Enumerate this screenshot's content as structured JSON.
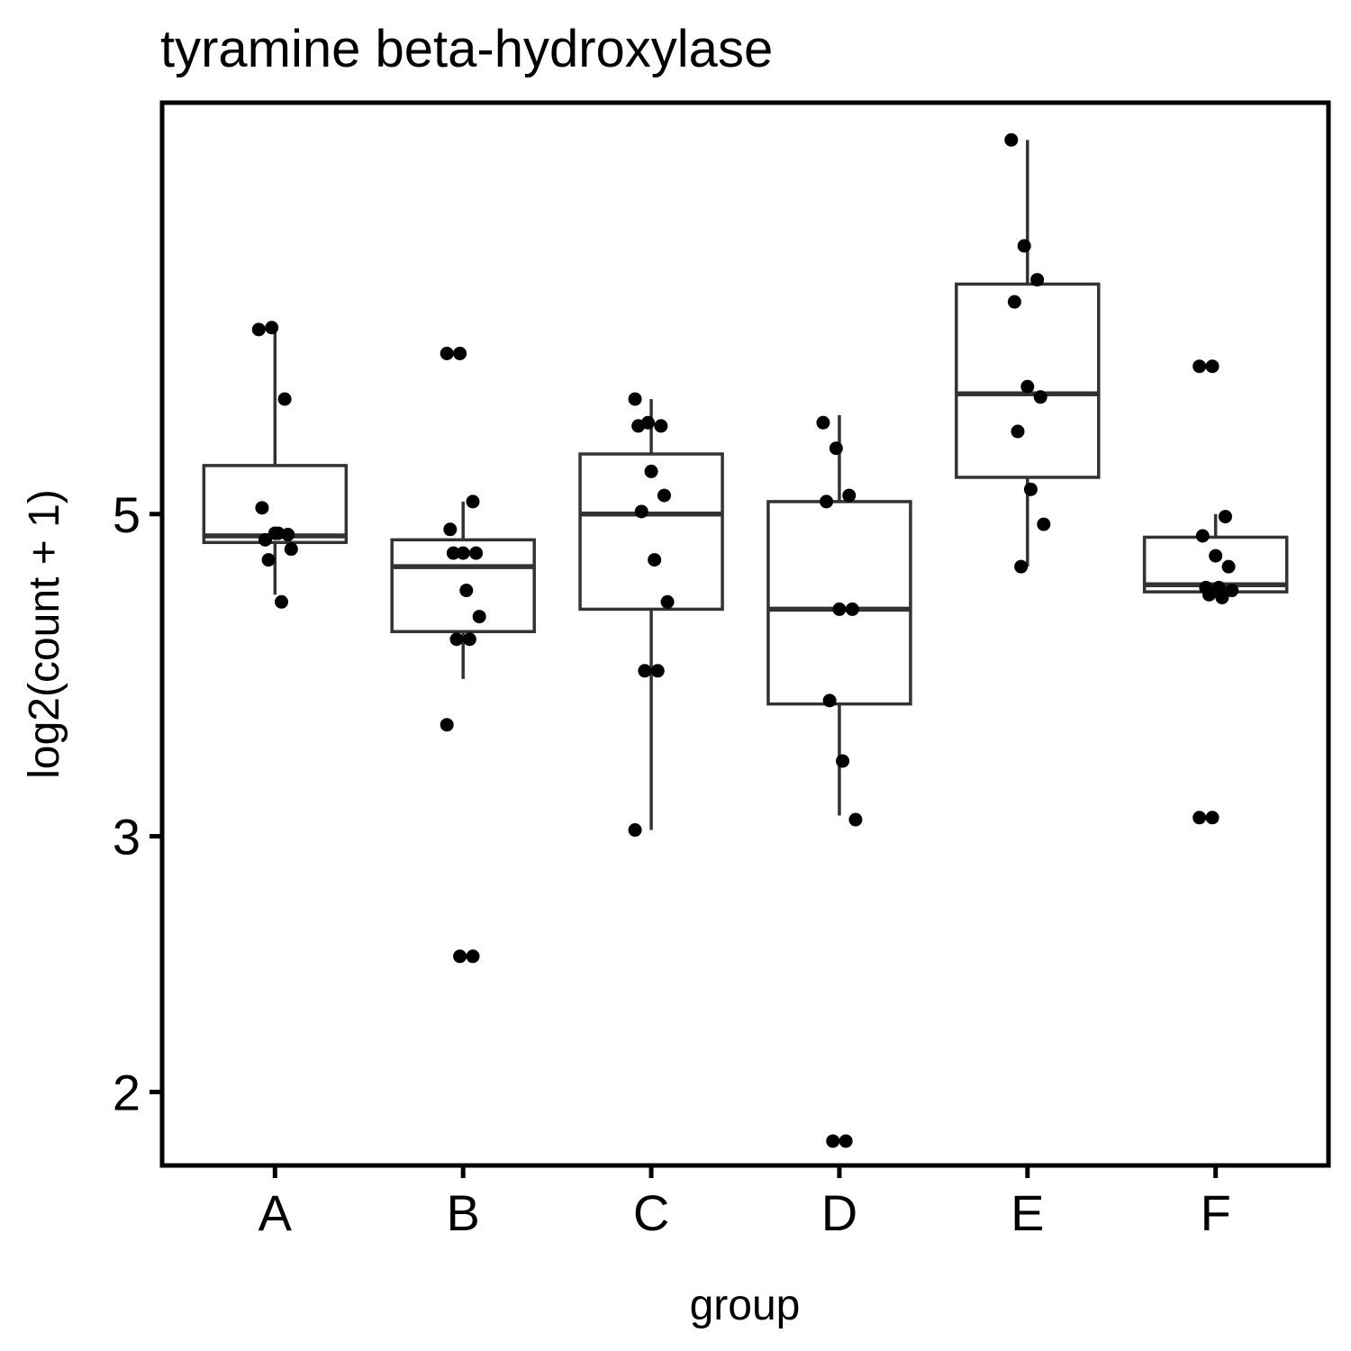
{
  "chart_data": {
    "type": "boxplot",
    "title": "tyramine beta-hydroxylase",
    "xlabel": "group",
    "ylabel": "log2(count + 1)",
    "scale_y": "log",
    "ylim": [
      1.78,
      9.6
    ],
    "yticks": [
      2,
      3,
      5
    ],
    "grid": false,
    "legend": "none",
    "categories": [
      "A",
      "B",
      "C",
      "D",
      "E",
      "F"
    ],
    "boxes": [
      {
        "group": "A",
        "min": 4.4,
        "q1": 4.78,
        "median": 4.83,
        "q3": 5.4,
        "max": 6.7
      },
      {
        "group": "B",
        "min": 3.85,
        "q1": 4.15,
        "median": 4.6,
        "q3": 4.8,
        "max": 5.1
      },
      {
        "group": "C",
        "min": 3.03,
        "q1": 4.3,
        "median": 5.0,
        "q3": 5.5,
        "max": 6.0
      },
      {
        "group": "D",
        "min": 3.1,
        "q1": 3.7,
        "median": 4.3,
        "q3": 5.1,
        "max": 5.85
      },
      {
        "group": "E",
        "min": 4.6,
        "q1": 5.3,
        "median": 6.05,
        "q3": 7.2,
        "max": 9.05
      },
      {
        "group": "F",
        "min": 4.4,
        "q1": 4.42,
        "median": 4.47,
        "q3": 4.82,
        "max": 5.0
      }
    ],
    "points": [
      {
        "group": "A",
        "values": [
          6.7,
          6.72,
          6.0,
          5.05,
          4.85,
          4.84,
          4.8,
          4.85,
          4.73,
          4.65,
          4.35
        ]
      },
      {
        "group": "B",
        "values": [
          6.45,
          6.45,
          5.1,
          4.88,
          4.7,
          4.7,
          4.7,
          4.43,
          4.25,
          4.1,
          4.1,
          3.58,
          2.48,
          2.48
        ]
      },
      {
        "group": "C",
        "values": [
          6.0,
          5.78,
          5.75,
          5.75,
          5.35,
          5.15,
          5.02,
          4.65,
          4.35,
          3.9,
          3.9,
          3.03
        ]
      },
      {
        "group": "D",
        "values": [
          5.78,
          5.55,
          5.15,
          5.1,
          4.3,
          4.3,
          3.72,
          3.38,
          3.08,
          1.85,
          1.85
        ]
      },
      {
        "group": "E",
        "values": [
          9.05,
          7.65,
          7.25,
          7.0,
          6.12,
          6.02,
          5.7,
          5.2,
          4.92,
          4.6
        ]
      },
      {
        "group": "F",
        "values": [
          6.32,
          6.32,
          4.98,
          4.83,
          4.68,
          4.6,
          4.45,
          4.45,
          4.43,
          4.4,
          4.38,
          3.09,
          3.09
        ]
      }
    ]
  }
}
